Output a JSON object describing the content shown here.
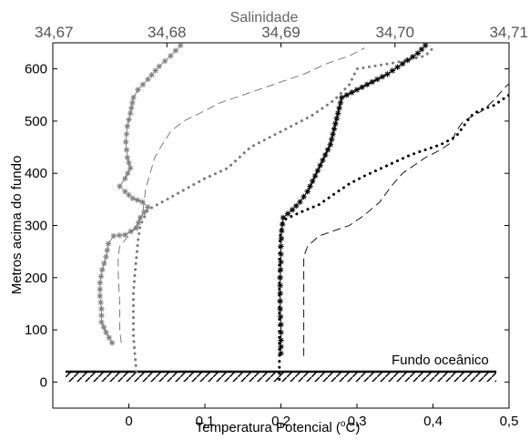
{
  "chart_data": {
    "type": "line",
    "x_axis_bottom": {
      "label_main": "Temperatura Potencial (",
      "label_sup": "o",
      "label_end": "C)",
      "range": [
        -0.1,
        0.5
      ],
      "ticks": [
        0,
        0.1,
        0.2,
        0.3,
        0.4,
        0.5
      ],
      "tick_labels": [
        "0",
        "0,1",
        "0,2",
        "0,3",
        "0,4",
        "0,5"
      ]
    },
    "x_axis_top": {
      "label": "Salinidade",
      "range": [
        34.67,
        34.71
      ],
      "ticks": [
        34.67,
        34.68,
        34.69,
        34.7,
        34.71
      ],
      "tick_labels": [
        "34,67",
        "34,68",
        "34,69",
        "34,70",
        "34,71"
      ]
    },
    "y_axis": {
      "label": "Metros acima do fundo",
      "range": [
        -50,
        650
      ],
      "ticks": [
        0,
        100,
        200,
        300,
        400,
        500,
        600
      ],
      "tick_labels": [
        "0",
        "100",
        "200",
        "300",
        "400",
        "500",
        "600"
      ]
    },
    "annotation": "Fundo oceânico",
    "grid": false,
    "series": [
      {
        "style": "gray-asterisk-line",
        "color": "#808080",
        "axis": "bottom",
        "points": [
          [
            -0.022,
            75
          ],
          [
            -0.03,
            95
          ],
          [
            -0.036,
            115
          ],
          [
            -0.036,
            140
          ],
          [
            -0.038,
            165
          ],
          [
            -0.038,
            190
          ],
          [
            -0.035,
            215
          ],
          [
            -0.03,
            240
          ],
          [
            -0.027,
            265
          ],
          [
            -0.02,
            280
          ],
          [
            -0.005,
            282
          ],
          [
            0.01,
            295
          ],
          [
            0.015,
            315
          ],
          [
            0.025,
            335
          ],
          [
            0.018,
            345
          ],
          [
            0.005,
            352
          ],
          [
            -0.005,
            365
          ],
          [
            -0.012,
            375
          ],
          [
            -0.005,
            390
          ],
          [
            0.002,
            410
          ],
          [
            -0.002,
            430
          ],
          [
            -0.004,
            460
          ],
          [
            -0.002,
            490
          ],
          [
            0.002,
            515
          ],
          [
            0.006,
            545
          ],
          [
            0.012,
            560
          ],
          [
            0.025,
            580
          ],
          [
            0.04,
            605
          ],
          [
            0.055,
            625
          ],
          [
            0.068,
            645
          ]
        ]
      },
      {
        "style": "thin-dashed-gray",
        "color": "#6e6e6e",
        "axis": "bottom",
        "points": [
          [
            -0.01,
            75
          ],
          [
            -0.012,
            100
          ],
          [
            -0.012,
            125
          ],
          [
            -0.012,
            150
          ],
          [
            -0.013,
            180
          ],
          [
            -0.014,
            210
          ],
          [
            -0.014,
            240
          ],
          [
            -0.012,
            260
          ],
          [
            -0.005,
            272
          ],
          [
            0.005,
            290
          ],
          [
            0.018,
            320
          ],
          [
            0.02,
            345
          ],
          [
            0.022,
            370
          ],
          [
            0.028,
            400
          ],
          [
            0.034,
            430
          ],
          [
            0.044,
            455
          ],
          [
            0.055,
            480
          ],
          [
            0.072,
            500
          ],
          [
            0.1,
            520
          ],
          [
            0.12,
            535
          ],
          [
            0.15,
            550
          ],
          [
            0.19,
            570
          ],
          [
            0.23,
            590
          ],
          [
            0.26,
            610
          ],
          [
            0.29,
            625
          ],
          [
            0.31,
            640
          ]
        ]
      },
      {
        "style": "gray-dotted-thick",
        "color": "#7a7a7a",
        "axis": "bottom",
        "points": [
          [
            0.01,
            20
          ],
          [
            0.008,
            50
          ],
          [
            0.006,
            90
          ],
          [
            0.006,
            130
          ],
          [
            0.006,
            170
          ],
          [
            0.008,
            210
          ],
          [
            0.01,
            240
          ],
          [
            0.012,
            270
          ],
          [
            0.015,
            300
          ],
          [
            0.025,
            330
          ],
          [
            0.05,
            350
          ],
          [
            0.075,
            370
          ],
          [
            0.1,
            390
          ],
          [
            0.13,
            410
          ],
          [
            0.16,
            450
          ],
          [
            0.2,
            480
          ],
          [
            0.24,
            510
          ],
          [
            0.27,
            540
          ],
          [
            0.29,
            570
          ],
          [
            0.3,
            600
          ],
          [
            0.35,
            612
          ],
          [
            0.39,
            625
          ],
          [
            0.4,
            640
          ]
        ]
      },
      {
        "style": "black-asterisk-line",
        "color": "#000000",
        "axis": "bottom",
        "points": [
          [
            0.2,
            55
          ],
          [
            0.2,
            80
          ],
          [
            0.2,
            110
          ],
          [
            0.199,
            140
          ],
          [
            0.199,
            170
          ],
          [
            0.199,
            200
          ],
          [
            0.2,
            230
          ],
          [
            0.2,
            260
          ],
          [
            0.201,
            290
          ],
          [
            0.203,
            315
          ],
          [
            0.215,
            330
          ],
          [
            0.225,
            345
          ],
          [
            0.235,
            365
          ],
          [
            0.245,
            395
          ],
          [
            0.255,
            425
          ],
          [
            0.265,
            455
          ],
          [
            0.27,
            485
          ],
          [
            0.275,
            515
          ],
          [
            0.28,
            545
          ],
          [
            0.3,
            560
          ],
          [
            0.32,
            575
          ],
          [
            0.34,
            590
          ],
          [
            0.36,
            610
          ],
          [
            0.38,
            630
          ],
          [
            0.39,
            645
          ]
        ]
      },
      {
        "style": "thin-dashed-black",
        "color": "#000000",
        "axis": "bottom",
        "points": [
          [
            0.23,
            50
          ],
          [
            0.23,
            100
          ],
          [
            0.23,
            150
          ],
          [
            0.23,
            200
          ],
          [
            0.23,
            240
          ],
          [
            0.235,
            260
          ],
          [
            0.25,
            280
          ],
          [
            0.29,
            300
          ],
          [
            0.31,
            320
          ],
          [
            0.33,
            345
          ],
          [
            0.345,
            375
          ],
          [
            0.36,
            400
          ],
          [
            0.375,
            415
          ],
          [
            0.39,
            430
          ],
          [
            0.41,
            445
          ],
          [
            0.425,
            460
          ],
          [
            0.43,
            480
          ],
          [
            0.44,
            500
          ],
          [
            0.465,
            520
          ],
          [
            0.48,
            540
          ],
          [
            0.495,
            565
          ],
          [
            0.51,
            585
          ],
          [
            0.52,
            600
          ]
        ]
      },
      {
        "style": "black-dotted-thick",
        "color": "#000000",
        "axis": "bottom",
        "points": [
          [
            0.198,
            5
          ],
          [
            0.198,
            40
          ],
          [
            0.198,
            80
          ],
          [
            0.198,
            120
          ],
          [
            0.198,
            160
          ],
          [
            0.198,
            200
          ],
          [
            0.198,
            240
          ],
          [
            0.199,
            280
          ],
          [
            0.203,
            310
          ],
          [
            0.225,
            325
          ],
          [
            0.25,
            340
          ],
          [
            0.27,
            360
          ],
          [
            0.29,
            380
          ],
          [
            0.31,
            395
          ],
          [
            0.34,
            415
          ],
          [
            0.37,
            435
          ],
          [
            0.41,
            455
          ],
          [
            0.43,
            470
          ],
          [
            0.44,
            490
          ],
          [
            0.45,
            510
          ],
          [
            0.46,
            520
          ],
          [
            0.48,
            530
          ],
          [
            0.5,
            550
          ],
          [
            0.52,
            570
          ],
          [
            0.53,
            590
          ]
        ]
      }
    ]
  }
}
